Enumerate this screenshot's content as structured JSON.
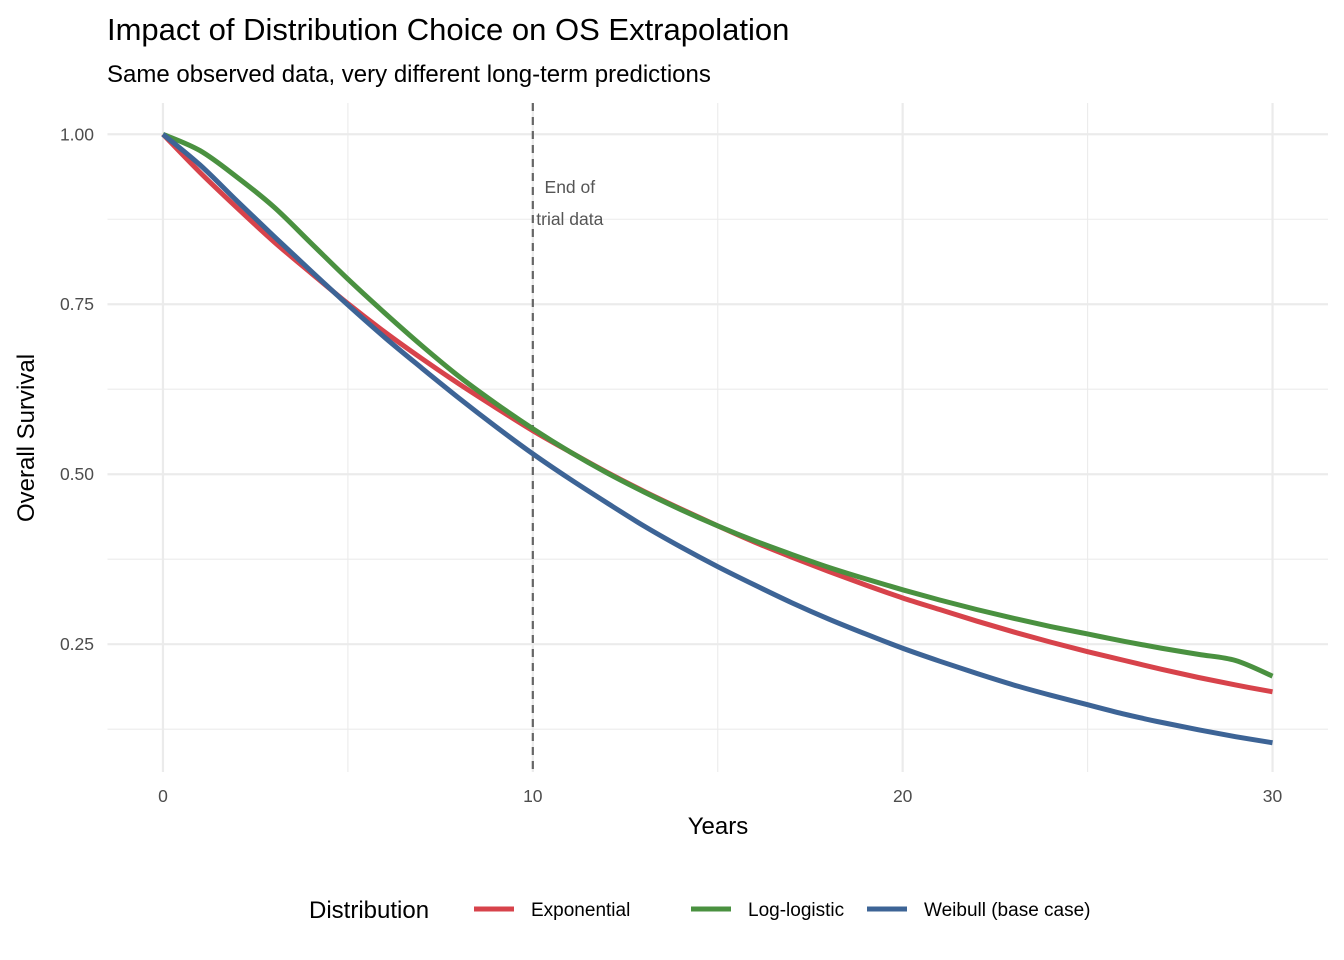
{
  "chart_data": {
    "type": "line",
    "title": "Impact of Distribution Choice on OS Extrapolation",
    "subtitle": "Same observed data, very different long-term predictions",
    "xlabel": "Years",
    "ylabel": "Overall Survival",
    "xlim": [
      -1.5,
      31.5
    ],
    "ylim": [
      0.062,
      1.046
    ],
    "x_ticks": [
      0,
      10,
      20,
      30
    ],
    "x_tick_labels": [
      "0",
      "10",
      "20",
      "30"
    ],
    "x_minor": [
      5,
      15,
      25
    ],
    "y_ticks": [
      0.25,
      0.5,
      0.75,
      1.0
    ],
    "y_tick_labels": [
      "0.25",
      "0.50",
      "0.75",
      "1.00"
    ],
    "y_minor": [
      0.125,
      0.375,
      0.625,
      0.875
    ],
    "grid": true,
    "legend": {
      "title": "Distribution",
      "position": "bottom",
      "entries": [
        "Exponential",
        "Log-logistic",
        "Weibull (base case)"
      ]
    },
    "annotation": {
      "vline_x": 10,
      "vline_style": "dashed",
      "text": [
        "End of",
        "trial data"
      ],
      "text_y": 0.885
    },
    "x": [
      0,
      1,
      2,
      3,
      4,
      5,
      6,
      7,
      8,
      9,
      10,
      11,
      12,
      13,
      14,
      15,
      16,
      17,
      18,
      19,
      20,
      21,
      22,
      23,
      24,
      25,
      26,
      27,
      28,
      29,
      30
    ],
    "series": [
      {
        "name": "Exponential",
        "color": "#d7434b",
        "values": [
          1.0,
          0.944,
          0.892,
          0.842,
          0.796,
          0.751,
          0.709,
          0.67,
          0.633,
          0.598,
          0.564,
          0.533,
          0.503,
          0.475,
          0.449,
          0.424,
          0.4,
          0.378,
          0.357,
          0.337,
          0.318,
          0.301,
          0.284,
          0.268,
          0.253,
          0.239,
          0.226,
          0.213,
          0.201,
          0.19,
          0.18
        ]
      },
      {
        "name": "Log-logistic",
        "color": "#4a9140",
        "values": [
          1.0,
          0.976,
          0.937,
          0.893,
          0.84,
          0.787,
          0.737,
          0.689,
          0.644,
          0.604,
          0.567,
          0.533,
          0.502,
          0.474,
          0.448,
          0.424,
          0.402,
          0.382,
          0.363,
          0.346,
          0.33,
          0.315,
          0.301,
          0.288,
          0.276,
          0.265,
          0.254,
          0.244,
          0.235,
          0.226,
          0.203
        ]
      },
      {
        "name": "Weibull (base case)",
        "color": "#3d6496",
        "values": [
          1.0,
          0.955,
          0.902,
          0.85,
          0.799,
          0.749,
          0.701,
          0.656,
          0.612,
          0.57,
          0.53,
          0.493,
          0.458,
          0.424,
          0.393,
          0.364,
          0.337,
          0.311,
          0.287,
          0.265,
          0.244,
          0.225,
          0.207,
          0.19,
          0.175,
          0.161,
          0.147,
          0.135,
          0.124,
          0.114,
          0.105
        ]
      }
    ]
  }
}
